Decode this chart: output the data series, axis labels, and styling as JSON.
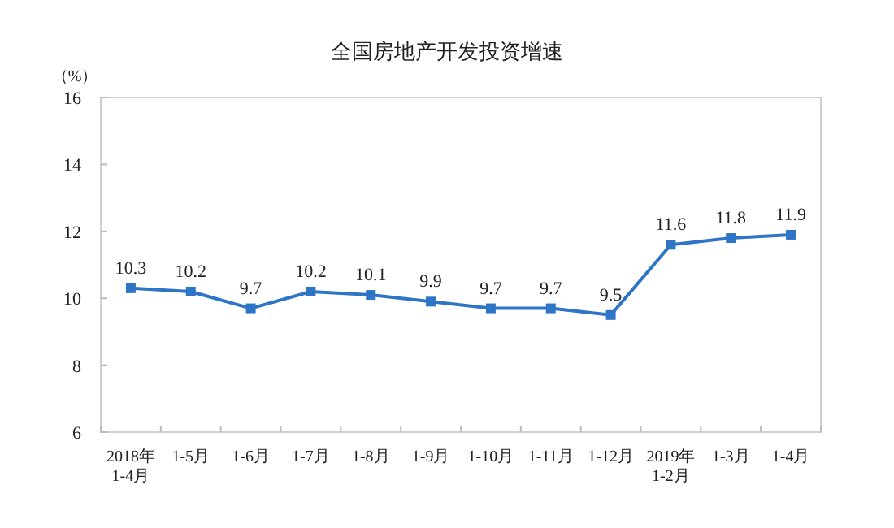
{
  "chart_data": {
    "type": "line",
    "title": "全国房地产开发投资增速",
    "ylabel": "（%）",
    "categories": [
      "2018年\n1-4月",
      "1-5月",
      "1-6月",
      "1-7月",
      "1-8月",
      "1-9月",
      "1-10月",
      "1-11月",
      "1-12月",
      "2019年\n1-2月",
      "1-3月",
      "1-4月"
    ],
    "series": [
      {
        "color": "#2e75c6",
        "values": [
          10.3,
          10.2,
          9.7,
          10.2,
          10.1,
          9.9,
          9.7,
          9.7,
          9.5,
          11.6,
          11.8,
          11.9
        ]
      }
    ],
    "ylim": [
      6,
      16
    ],
    "yticks": [
      6,
      8,
      10,
      12,
      14,
      16
    ],
    "grid": false,
    "data_labels": true,
    "marker": "square",
    "line_style": "solid"
  }
}
